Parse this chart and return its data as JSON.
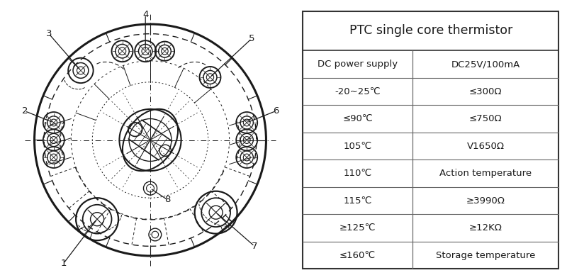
{
  "table_title": "PTC single core thermistor",
  "table_rows": [
    [
      "DC power supply",
      "DC25V/100mA"
    ],
    [
      "-20~25℃",
      "≤300Ω"
    ],
    [
      "≤90℃",
      "≤750Ω"
    ],
    [
      "105℃",
      "Ⅴ1650Ω"
    ],
    [
      "110℃",
      "Action temperature"
    ],
    [
      "115℃",
      "≥3990Ω"
    ],
    [
      "≥125℃",
      "≥12KΩ"
    ],
    [
      "≤160℃",
      "Storage temperature"
    ]
  ],
  "bg_color": "#ffffff",
  "line_color": "#1a1a1a",
  "text_color": "#1a1a1a"
}
